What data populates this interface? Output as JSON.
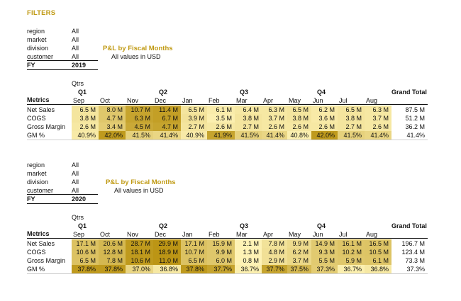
{
  "filters_title": "FILTERS",
  "filter_labels": [
    "region",
    "market",
    "division",
    "customer"
  ],
  "fy_label": "FY",
  "pl_title": "P&L by Fiscal Months",
  "pl_subtitle": "All values in USD",
  "qtrs_label": "Qtrs",
  "metrics_label": "Metrics",
  "grand_total_label": "Grand Total",
  "quarters": [
    "Q1",
    "Q2",
    "Q3",
    "Q4"
  ],
  "months": [
    "Sep",
    "Oct",
    "Nov",
    "Dec",
    "Jan",
    "Feb",
    "Mar",
    "Apr",
    "May",
    "Jun",
    "Jul",
    "Aug"
  ],
  "row_labels": [
    "Net Sales",
    "COGS",
    "Gross Margin",
    "GM %"
  ],
  "colors": {
    "accent": "#c09a14",
    "heat_low": "#fff4b8",
    "heat_high": "#b8900c"
  },
  "reports": [
    {
      "filter_values": [
        "All",
        "All",
        "All",
        "All"
      ],
      "fy": "2019",
      "rows": [
        {
          "values": [
            "6.5 M",
            "8.0 M",
            "10.7 M",
            "11.4 M",
            "6.5 M",
            "6.1 M",
            "6.4 M",
            "6.3 M",
            "6.5 M",
            "6.2 M",
            "6.5 M",
            "6.3 M"
          ],
          "total": "87.5 M",
          "shade": [
            0.15,
            0.45,
            0.8,
            0.85,
            0.15,
            0.08,
            0.12,
            0.12,
            0.15,
            0.1,
            0.15,
            0.12
          ]
        },
        {
          "values": [
            "3.8 M",
            "4.7 M",
            "6.3 M",
            "6.7 M",
            "3.9 M",
            "3.5 M",
            "3.8 M",
            "3.7 M",
            "3.8 M",
            "3.6 M",
            "3.8 M",
            "3.7 M"
          ],
          "total": "51.2 M",
          "shade": [
            0.15,
            0.45,
            0.8,
            0.85,
            0.18,
            0.05,
            0.15,
            0.12,
            0.15,
            0.1,
            0.15,
            0.12
          ]
        },
        {
          "values": [
            "2.6 M",
            "3.4 M",
            "4.5 M",
            "4.7 M",
            "2.7 M",
            "2.6 M",
            "2.7 M",
            "2.6 M",
            "2.6 M",
            "2.6 M",
            "2.7 M",
            "2.6 M"
          ],
          "total": "36.2 M",
          "shade": [
            0.12,
            0.4,
            0.75,
            0.8,
            0.15,
            0.12,
            0.15,
            0.12,
            0.12,
            0.12,
            0.15,
            0.12
          ]
        },
        {
          "values": [
            "40.9%",
            "42.0%",
            "41.5%",
            "41.4%",
            "40.9%",
            "41.9%",
            "41.5%",
            "41.4%",
            "40.8%",
            "42.0%",
            "41.5%",
            "41.4%"
          ],
          "total": "41.4%",
          "shade": [
            0.1,
            0.9,
            0.35,
            0.3,
            0.1,
            0.8,
            0.35,
            0.3,
            0.05,
            0.9,
            0.35,
            0.3
          ]
        }
      ]
    },
    {
      "filter_values": [
        "All",
        "All",
        "All",
        "All"
      ],
      "fy": "2020",
      "rows": [
        {
          "values": [
            "17.1 M",
            "20.6 M",
            "28.7 M",
            "29.9 M",
            "17.1 M",
            "15.9 M",
            "2.1 M",
            "7.8 M",
            "9.9 M",
            "14.9 M",
            "16.1 M",
            "16.5 M"
          ],
          "total": "196.7 M",
          "shade": [
            0.5,
            0.6,
            0.9,
            0.95,
            0.5,
            0.45,
            0.02,
            0.18,
            0.25,
            0.42,
            0.47,
            0.48
          ]
        },
        {
          "values": [
            "10.6 M",
            "12.8 M",
            "18.1 M",
            "18.9 M",
            "10.7 M",
            "9.9 M",
            "1.3 M",
            "4.8 M",
            "6.2 M",
            "9.3 M",
            "10.2 M",
            "10.5 M"
          ],
          "total": "123.4 M",
          "shade": [
            0.5,
            0.6,
            0.9,
            0.95,
            0.5,
            0.45,
            0.02,
            0.2,
            0.28,
            0.42,
            0.47,
            0.48
          ]
        },
        {
          "values": [
            "6.5 M",
            "7.8 M",
            "10.6 M",
            "11.0 M",
            "6.5 M",
            "6.0 M",
            "0.8 M",
            "2.9 M",
            "3.7 M",
            "5.5 M",
            "5.9 M",
            "6.1 M"
          ],
          "total": "73.3 M",
          "shade": [
            0.5,
            0.6,
            0.9,
            0.95,
            0.5,
            0.45,
            0.02,
            0.2,
            0.28,
            0.42,
            0.45,
            0.47
          ]
        },
        {
          "values": [
            "37.8%",
            "37.8%",
            "37.0%",
            "36.8%",
            "37.8%",
            "37.7%",
            "36.7%",
            "37.7%",
            "37.5%",
            "37.3%",
            "36.7%",
            "36.8%"
          ],
          "total": "37.3%",
          "shade": [
            0.9,
            0.9,
            0.3,
            0.12,
            0.9,
            0.8,
            0.05,
            0.8,
            0.6,
            0.4,
            0.05,
            0.12
          ]
        }
      ]
    }
  ]
}
